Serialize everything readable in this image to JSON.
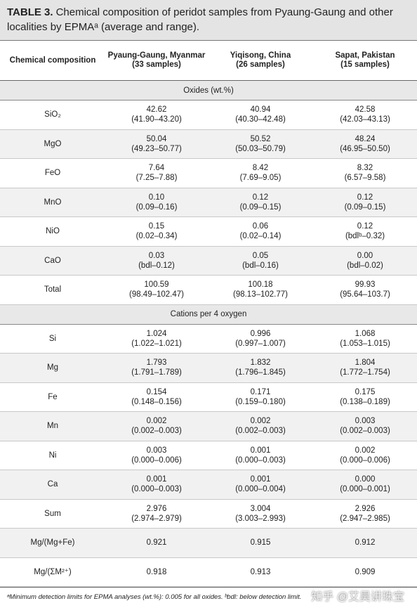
{
  "title": {
    "number": "TABLE 3.",
    "text": "Chemical composition of peridot samples from Pyaung-Gaung and other localities by EPMAᵃ (average and range)."
  },
  "table": {
    "header": {
      "label": "Chemical composition",
      "columns": [
        {
          "name": "Pyaung-Gaung, Myanmar",
          "samples": "(33 samples)"
        },
        {
          "name": "Yiqisong, China",
          "samples": "(26 samples)"
        },
        {
          "name": "Sapat, Pakistan",
          "samples": "(15 samples)"
        }
      ]
    },
    "sections": [
      {
        "title": "Oxides (wt.%)",
        "rows": [
          {
            "label": "SiO₂",
            "cells": [
              {
                "value": "42.62",
                "range": "(41.90–43.20)"
              },
              {
                "value": "40.94",
                "range": "(40.30–42.48)"
              },
              {
                "value": "42.58",
                "range": "(42.03–43.13)"
              }
            ]
          },
          {
            "label": "MgO",
            "cells": [
              {
                "value": "50.04",
                "range": "(49.23–50.77)"
              },
              {
                "value": "50.52",
                "range": "(50.03–50.79)"
              },
              {
                "value": "48.24",
                "range": "(46.95–50.50)"
              }
            ]
          },
          {
            "label": "FeO",
            "cells": [
              {
                "value": "7.64",
                "range": "(7.25–7.88)"
              },
              {
                "value": "8.42",
                "range": "(7.69–9.05)"
              },
              {
                "value": "8.32",
                "range": "(6.57–9.58)"
              }
            ]
          },
          {
            "label": "MnO",
            "cells": [
              {
                "value": "0.10",
                "range": "(0.09–0.16)"
              },
              {
                "value": "0.12",
                "range": "(0.09–0.15)"
              },
              {
                "value": "0.12",
                "range": "(0.09–0.15)"
              }
            ]
          },
          {
            "label": "NiO",
            "cells": [
              {
                "value": "0.15",
                "range": "(0.02–0.34)"
              },
              {
                "value": "0.06",
                "range": "(0.02–0.14)"
              },
              {
                "value": "0.12",
                "range": "(bdlᵇ–0.32)"
              }
            ]
          },
          {
            "label": "CaO",
            "cells": [
              {
                "value": "0.03",
                "range": "(bdl–0.12)"
              },
              {
                "value": "0.05",
                "range": "(bdl–0.16)"
              },
              {
                "value": "0.00",
                "range": "(bdl–0.02)"
              }
            ]
          },
          {
            "label": "Total",
            "cells": [
              {
                "value": "100.59",
                "range": "(98.49–102.47)"
              },
              {
                "value": "100.18",
                "range": "(98.13–102.77)"
              },
              {
                "value": "99.93",
                "range": "(95.64–103.7)"
              }
            ]
          }
        ]
      },
      {
        "title": "Cations per 4 oxygen",
        "rows": [
          {
            "label": "Si",
            "cells": [
              {
                "value": "1.024",
                "range": "(1.022–1.021)"
              },
              {
                "value": "0.996",
                "range": "(0.997–1.007)"
              },
              {
                "value": "1.068",
                "range": "(1.053–1.015)"
              }
            ]
          },
          {
            "label": "Mg",
            "cells": [
              {
                "value": "1.793",
                "range": "(1.791–1.789)"
              },
              {
                "value": "1.832",
                "range": "(1.796–1.845)"
              },
              {
                "value": "1.804",
                "range": "(1.772–1.754)"
              }
            ]
          },
          {
            "label": "Fe",
            "cells": [
              {
                "value": "0.154",
                "range": "(0.148–0.156)"
              },
              {
                "value": "0.171",
                "range": "(0.159–0.180)"
              },
              {
                "value": "0.175",
                "range": "(0.138–0.189)"
              }
            ]
          },
          {
            "label": "Mn",
            "cells": [
              {
                "value": "0.002",
                "range": "(0.002–0.003)"
              },
              {
                "value": "0.002",
                "range": "(0.002–0.003)"
              },
              {
                "value": "0.003",
                "range": "(0.002–0.003)"
              }
            ]
          },
          {
            "label": "Ni",
            "cells": [
              {
                "value": "0.003",
                "range": "(0.000–0.006)"
              },
              {
                "value": "0.001",
                "range": "(0.000–0.003)"
              },
              {
                "value": "0.002",
                "range": "(0.000–0.006)"
              }
            ]
          },
          {
            "label": "Ca",
            "cells": [
              {
                "value": "0.001",
                "range": "(0.000–0.003)"
              },
              {
                "value": "0.001",
                "range": "(0.000–0.004)"
              },
              {
                "value": "0.000",
                "range": "(0.000–0.001)"
              }
            ]
          },
          {
            "label": "Sum",
            "cells": [
              {
                "value": "2.976",
                "range": "(2.974–2.979)"
              },
              {
                "value": "3.004",
                "range": "(3.003–2.993)"
              },
              {
                "value": "2.926",
                "range": "(2.947–2.985)"
              }
            ]
          },
          {
            "label": "Mg/(Mg+Fe)",
            "cells": [
              {
                "value": "0.921"
              },
              {
                "value": "0.915"
              },
              {
                "value": "0.912"
              }
            ]
          },
          {
            "label": "Mg/(ΣM²⁺)",
            "cells": [
              {
                "value": "0.918"
              },
              {
                "value": "0.913"
              },
              {
                "value": "0.909"
              }
            ]
          }
        ]
      }
    ]
  },
  "footnote": "ᵃMinimum detection limits for EPMA analyses (wt.%): 0.005 for all oxides. ᵇbdl: below detection limit.",
  "watermark": "知乎 @艾昊讲珠宝"
}
